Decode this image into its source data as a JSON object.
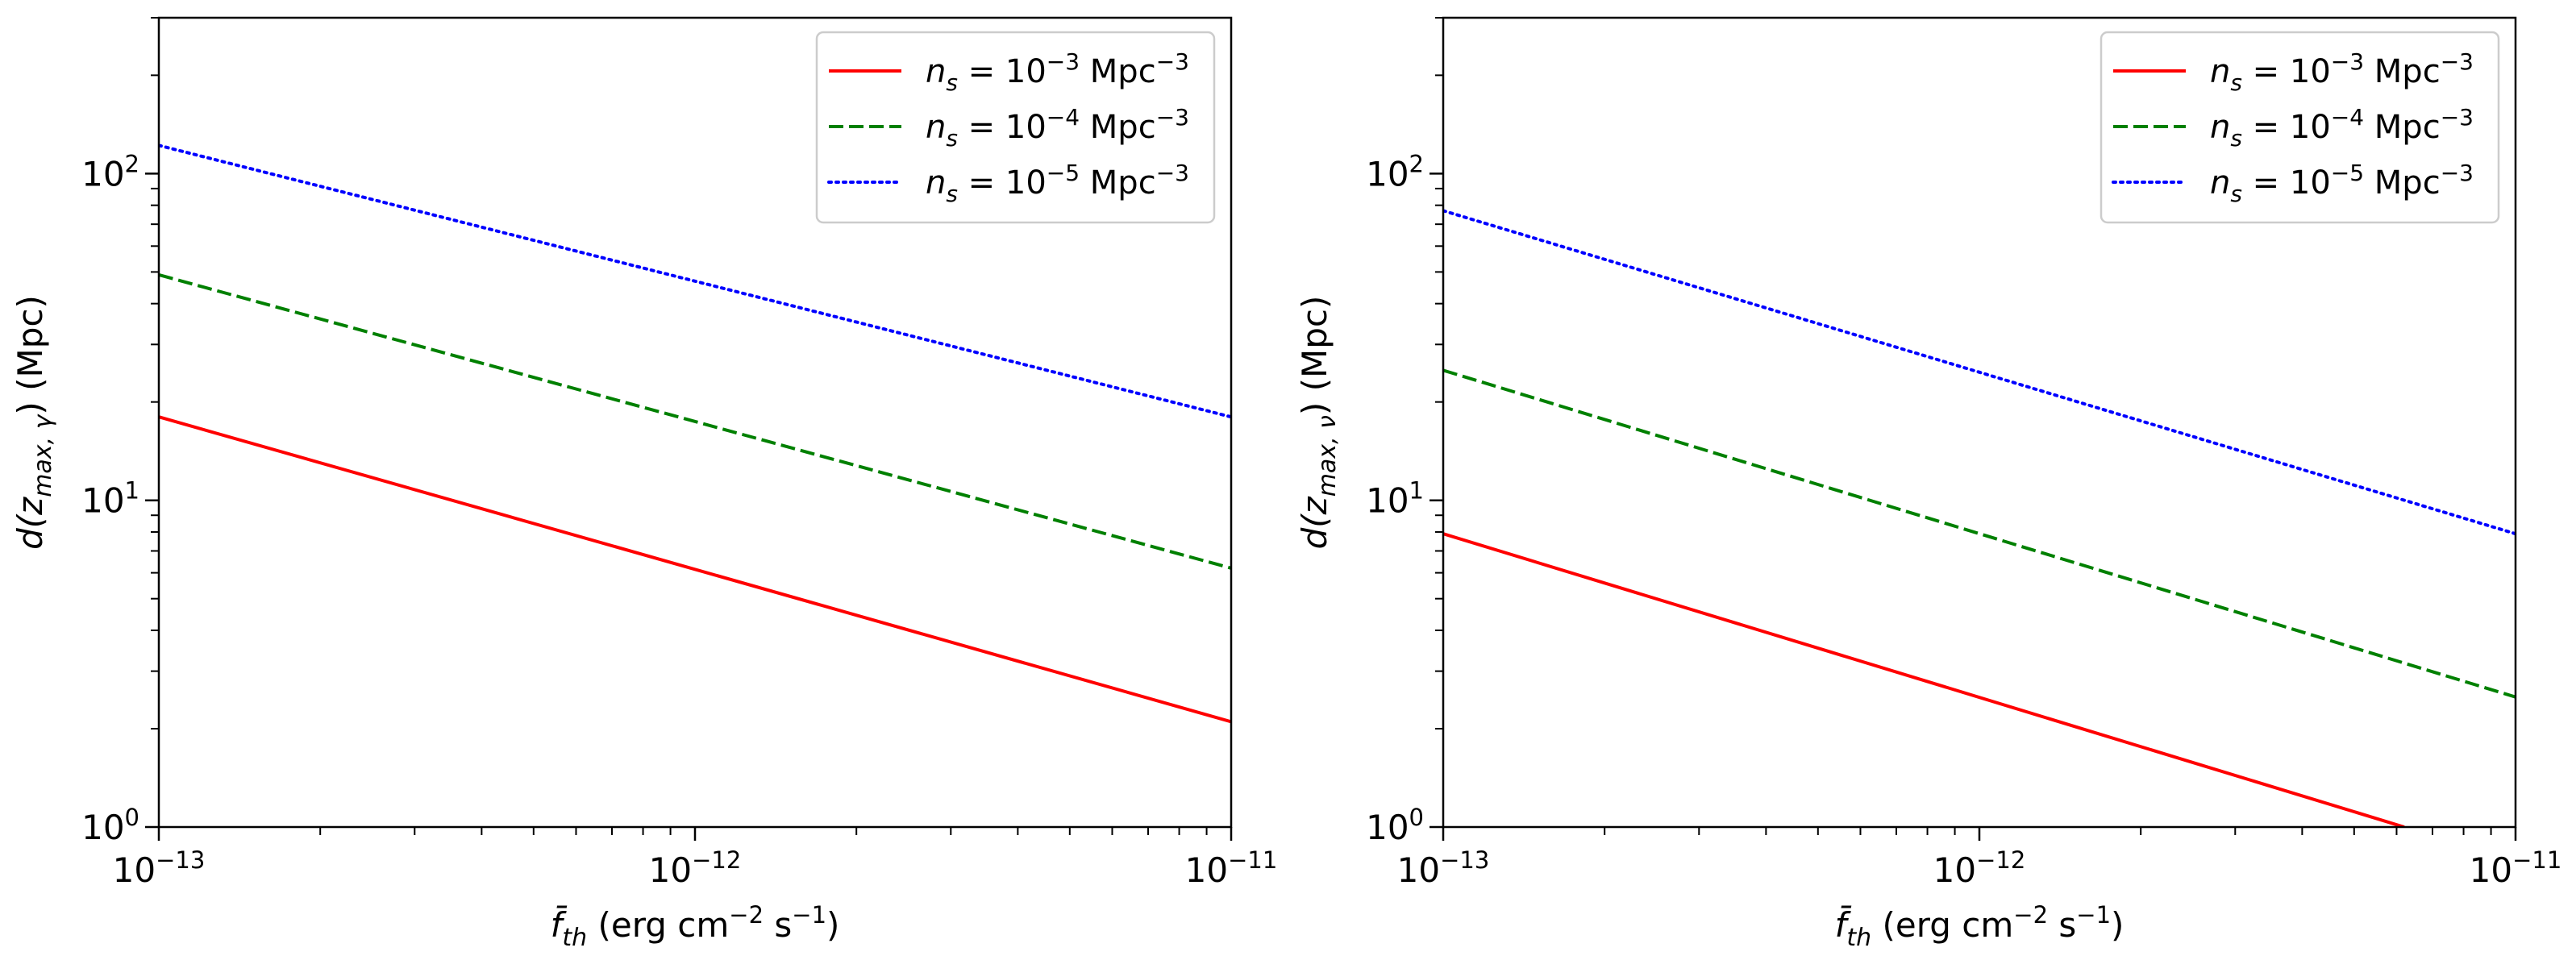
{
  "chart_data": [
    {
      "type": "line",
      "scale": {
        "x": "log",
        "y": "log"
      },
      "xlim": [
        1e-13,
        1e-11
      ],
      "ylim": [
        1,
        300
      ],
      "xlabel": {
        "prefix": "f̄",
        "sub": "th",
        "unit_before": " (erg cm",
        "exp1": "−2",
        "unit_mid": " s",
        "exp2": "−1",
        "unit_after": ")"
      },
      "ylabel": {
        "prefix": "d(z",
        "sub": "max, γ",
        "suffix": ") (Mpc)"
      },
      "xticks": [
        {
          "value": 1e-13,
          "base": "10",
          "exp": "−13"
        },
        {
          "value": 1e-12,
          "base": "10",
          "exp": "−12"
        },
        {
          "value": 1e-11,
          "base": "10",
          "exp": "−11"
        }
      ],
      "yticks": [
        {
          "value": 1,
          "base": "10",
          "exp": "0"
        },
        {
          "value": 10,
          "base": "10",
          "exp": "1"
        },
        {
          "value": 100,
          "base": "10",
          "exp": "2"
        }
      ],
      "legend_position": "top-right",
      "series": [
        {
          "name": "n_s = 10^-3 Mpc^-3",
          "label": {
            "sym": "n",
            "sub": "s",
            "eq": " = 10",
            "exp": "−3",
            "unit": " Mpc",
            "unit_exp": "−3"
          },
          "color": "#ff0000",
          "style": "solid",
          "x": [
            1e-13,
            1e-11
          ],
          "y": [
            18,
            2.1
          ]
        },
        {
          "name": "n_s = 10^-4 Mpc^-3",
          "label": {
            "sym": "n",
            "sub": "s",
            "eq": " = 10",
            "exp": "−4",
            "unit": " Mpc",
            "unit_exp": "−3"
          },
          "color": "#008000",
          "style": "dashed",
          "x": [
            1e-13,
            1e-11
          ],
          "y": [
            49,
            6.2
          ]
        },
        {
          "name": "n_s = 10^-5 Mpc^-3",
          "label": {
            "sym": "n",
            "sub": "s",
            "eq": " = 10",
            "exp": "−5",
            "unit": " Mpc",
            "unit_exp": "−3"
          },
          "color": "#0000ff",
          "style": "dotted",
          "x": [
            1e-13,
            1e-11
          ],
          "y": [
            122,
            18
          ]
        }
      ]
    },
    {
      "type": "line",
      "scale": {
        "x": "log",
        "y": "log"
      },
      "xlim": [
        1e-13,
        1e-11
      ],
      "ylim": [
        1,
        300
      ],
      "xlabel": {
        "prefix": "f̄",
        "sub": "th",
        "unit_before": " (erg cm",
        "exp1": "−2",
        "unit_mid": " s",
        "exp2": "−1",
        "unit_after": ")"
      },
      "ylabel": {
        "prefix": "d(z",
        "sub": "max, ν",
        "suffix": ") (Mpc)"
      },
      "xticks": [
        {
          "value": 1e-13,
          "base": "10",
          "exp": "−13"
        },
        {
          "value": 1e-12,
          "base": "10",
          "exp": "−12"
        },
        {
          "value": 1e-11,
          "base": "10",
          "exp": "−11"
        }
      ],
      "yticks": [
        {
          "value": 1,
          "base": "10",
          "exp": "0"
        },
        {
          "value": 10,
          "base": "10",
          "exp": "1"
        },
        {
          "value": 100,
          "base": "10",
          "exp": "2"
        }
      ],
      "legend_position": "top-right",
      "series": [
        {
          "name": "n_s = 10^-3 Mpc^-3",
          "label": {
            "sym": "n",
            "sub": "s",
            "eq": " = 10",
            "exp": "−3",
            "unit": " Mpc",
            "unit_exp": "−3"
          },
          "color": "#ff0000",
          "style": "solid",
          "x": [
            1e-13,
            6.2e-12
          ],
          "y": [
            7.9,
            1.0
          ]
        },
        {
          "name": "n_s = 10^-4 Mpc^-3",
          "label": {
            "sym": "n",
            "sub": "s",
            "eq": " = 10",
            "exp": "−4",
            "unit": " Mpc",
            "unit_exp": "−3"
          },
          "color": "#008000",
          "style": "dashed",
          "x": [
            1e-13,
            1e-11
          ],
          "y": [
            25,
            2.5
          ]
        },
        {
          "name": "n_s = 10^-5 Mpc^-3",
          "label": {
            "sym": "n",
            "sub": "s",
            "eq": " = 10",
            "exp": "−5",
            "unit": " Mpc",
            "unit_exp": "−3"
          },
          "color": "#0000ff",
          "style": "dotted",
          "x": [
            1e-13,
            1e-11
          ],
          "y": [
            77,
            7.9
          ]
        }
      ]
    }
  ]
}
